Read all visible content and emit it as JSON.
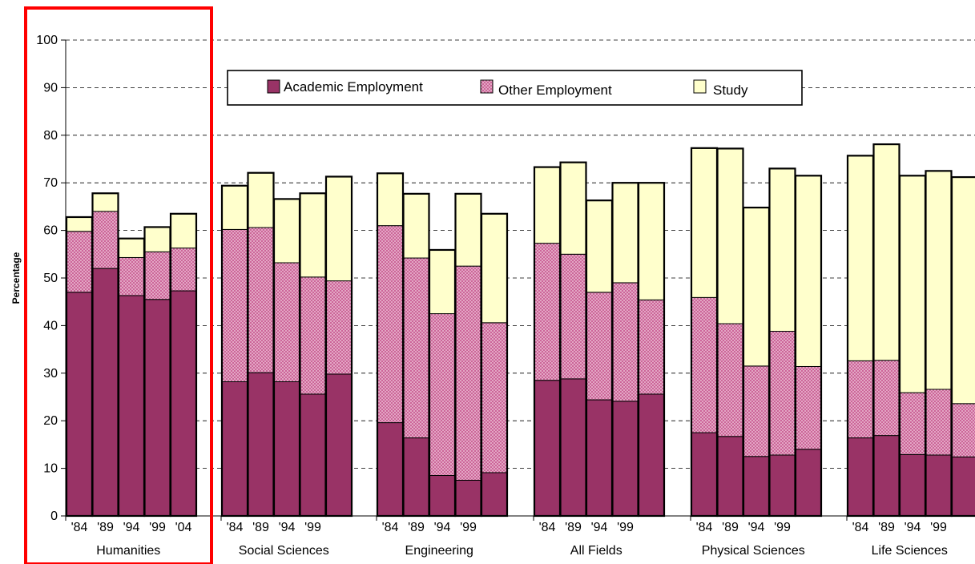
{
  "chart_data": {
    "type": "bar",
    "stacked": true,
    "ylabel": "Percentage",
    "xlabel": "",
    "ylim": [
      0,
      100
    ],
    "yticks": [
      0,
      10,
      20,
      30,
      40,
      50,
      60,
      70,
      80,
      90,
      100
    ],
    "grid": true,
    "legend_position": "top",
    "colors": {
      "Academic Employment": "#993366",
      "Other Employment": "#cc6699",
      "Study": "#ffffcc"
    },
    "highlight": {
      "group": "Humanities",
      "color": "#ff0000"
    },
    "series_names": [
      "Academic Employment",
      "Other Employment",
      "Study"
    ],
    "groups": [
      {
        "name": "Humanities",
        "tick_labels": [
          "'84",
          "'89",
          "'94",
          "'99",
          "'04"
        ],
        "bars": [
          [
            47,
            12.8,
            3
          ],
          [
            52,
            12,
            3.8
          ],
          [
            46.3,
            8,
            4
          ],
          [
            45.5,
            10,
            5.2
          ],
          [
            47.3,
            9,
            7.2
          ]
        ]
      },
      {
        "name": "Social Sciences",
        "tick_labels": [
          "'84",
          "'89",
          "'94",
          "'99",
          ""
        ],
        "bars": [
          [
            28.2,
            32,
            9.2
          ],
          [
            30.1,
            30.5,
            11.5
          ],
          [
            28.2,
            25,
            13.4
          ],
          [
            25.6,
            24.6,
            17.6
          ],
          [
            29.8,
            19.6,
            21.9
          ]
        ]
      },
      {
        "name": "Engineering",
        "tick_labels": [
          "'84",
          "'89",
          "'94",
          "'99",
          ""
        ],
        "bars": [
          [
            19.6,
            41.4,
            11
          ],
          [
            16.4,
            37.8,
            13.5
          ],
          [
            8.5,
            34,
            13.4
          ],
          [
            7.5,
            45,
            15.2
          ],
          [
            9.1,
            31.5,
            22.9
          ]
        ]
      },
      {
        "name": "All Fields",
        "tick_labels": [
          "'84",
          "'89",
          "'94",
          "'99",
          ""
        ],
        "bars": [
          [
            28.5,
            28.8,
            16
          ],
          [
            28.8,
            26.2,
            19.3
          ],
          [
            24.4,
            22.6,
            19.3
          ],
          [
            24.1,
            24.9,
            21
          ],
          [
            25.6,
            19.8,
            24.6
          ]
        ]
      },
      {
        "name": "Physical Sciences",
        "tick_labels": [
          "'84",
          "'89",
          "'94",
          "'99",
          ""
        ],
        "bars": [
          [
            17.5,
            28.4,
            31.4
          ],
          [
            16.7,
            23.7,
            36.8
          ],
          [
            12.5,
            19,
            33.3
          ],
          [
            12.8,
            26,
            34.2
          ],
          [
            14,
            17.4,
            40.1
          ]
        ]
      },
      {
        "name": "Life Sciences",
        "tick_labels": [
          "'84",
          "'89",
          "'94",
          "'99",
          ""
        ],
        "bars": [
          [
            16.4,
            16.2,
            43.1
          ],
          [
            16.9,
            15.8,
            45.4
          ],
          [
            12.9,
            13,
            45.6
          ],
          [
            12.8,
            13.8,
            45.9
          ],
          [
            12.4,
            11.2,
            47.6
          ]
        ]
      }
    ]
  }
}
